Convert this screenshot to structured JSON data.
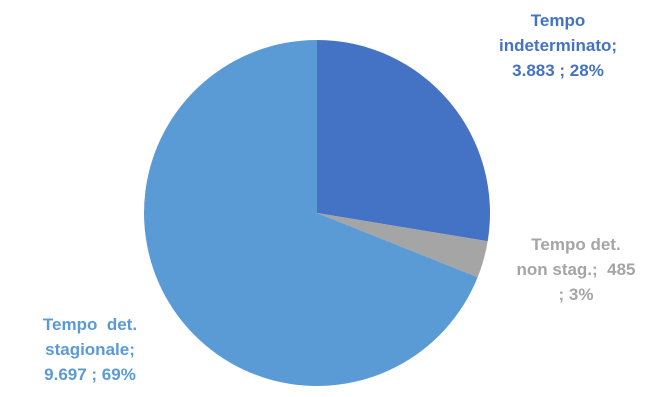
{
  "chart_data": {
    "type": "pie",
    "slices": [
      {
        "category": "Tempo indeterminato",
        "value": 3883,
        "percent": 28,
        "label_lines": [
          "Tempo",
          "indeterminato;",
          "3.883 ; 28%"
        ],
        "color": "#4472C4"
      },
      {
        "category": "Tempo det. non stag.",
        "value": 485,
        "percent": 3,
        "label_lines": [
          "Tempo det.",
          "non stag.;  485",
          "; 3%"
        ],
        "color": "#A5A5A5"
      },
      {
        "category": "Tempo det. stagionale",
        "value": 9697,
        "percent": 69,
        "label_lines": [
          "Tempo  det.",
          "stagionale;",
          "9.697 ; 69%"
        ],
        "color": "#5B9BD5"
      }
    ],
    "start_angle": "12 o'clock",
    "direction": "clockwise",
    "legend": "none",
    "data_labels": "outside, bold, colored like their slice"
  }
}
